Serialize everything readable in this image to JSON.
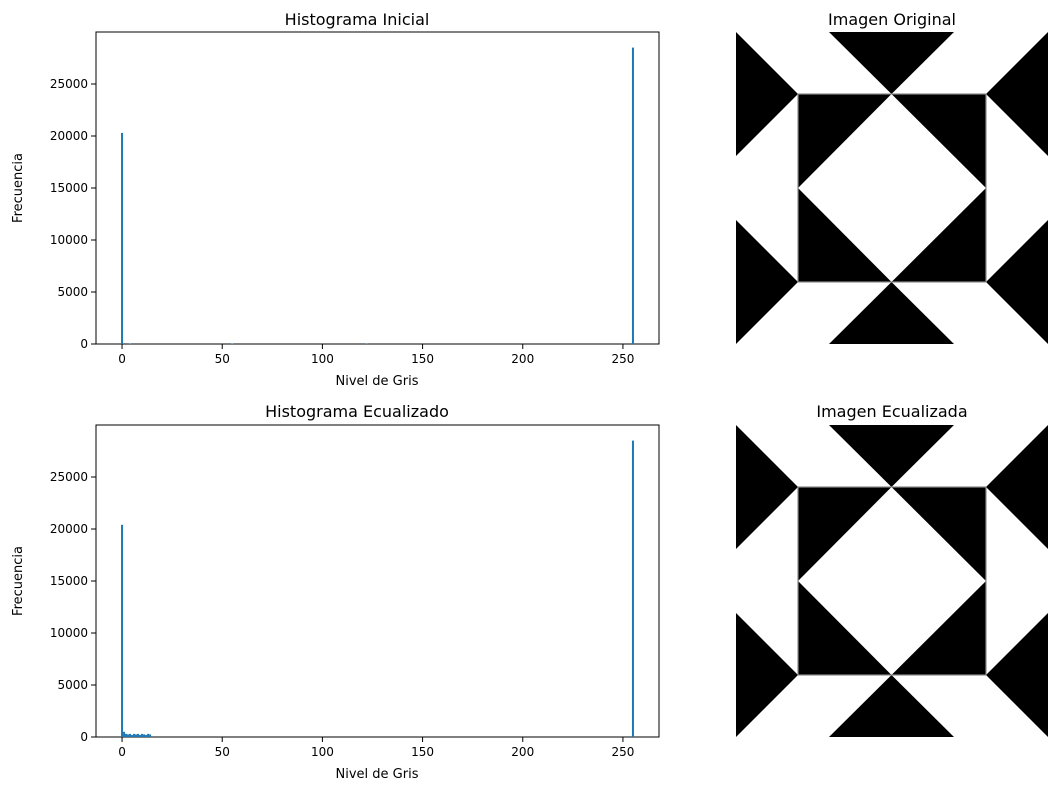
{
  "chart_data": [
    {
      "type": "bar",
      "title": "Histograma Inicial",
      "xlabel": "Nivel de Gris",
      "ylabel": "Frecuencia",
      "xlim": [
        -13,
        268
      ],
      "ylim": [
        0,
        30000
      ],
      "xticks": [
        0,
        50,
        100,
        150,
        200,
        250
      ],
      "yticks": [
        0,
        5000,
        10000,
        15000,
        20000,
        25000
      ],
      "bar_color": "#1f77b4",
      "grid": false,
      "bars": [
        {
          "x": 0,
          "y": 20300
        },
        {
          "x": 4,
          "y": 60
        },
        {
          "x": 55,
          "y": 40
        },
        {
          "x": 122,
          "y": 30
        },
        {
          "x": 255,
          "y": 28500
        }
      ]
    },
    {
      "type": "bar",
      "title": "Histograma Ecualizado",
      "xlabel": "Nivel de Gris",
      "ylabel": "Frecuencia",
      "xlim": [
        -13,
        268
      ],
      "ylim": [
        0,
        30000
      ],
      "xticks": [
        0,
        50,
        100,
        150,
        200,
        250
      ],
      "yticks": [
        0,
        5000,
        10000,
        15000,
        20000,
        25000
      ],
      "bar_color": "#1f77b4",
      "grid": false,
      "bars": [
        {
          "x": 0,
          "y": 20400
        },
        {
          "x": 1,
          "y": 500
        },
        {
          "x": 2,
          "y": 300
        },
        {
          "x": 3,
          "y": 250
        },
        {
          "x": 4,
          "y": 300
        },
        {
          "x": 5,
          "y": 200
        },
        {
          "x": 6,
          "y": 300
        },
        {
          "x": 7,
          "y": 250
        },
        {
          "x": 8,
          "y": 300
        },
        {
          "x": 9,
          "y": 200
        },
        {
          "x": 10,
          "y": 300
        },
        {
          "x": 11,
          "y": 250
        },
        {
          "x": 12,
          "y": 200
        },
        {
          "x": 13,
          "y": 300
        },
        {
          "x": 14,
          "y": 250
        },
        {
          "x": 255,
          "y": 28500
        }
      ]
    }
  ],
  "images": [
    {
      "title": "Imagen Original",
      "pattern": "triangle-tile"
    },
    {
      "title": "Imagen Ecualizada",
      "pattern": "triangle-tile"
    }
  ]
}
